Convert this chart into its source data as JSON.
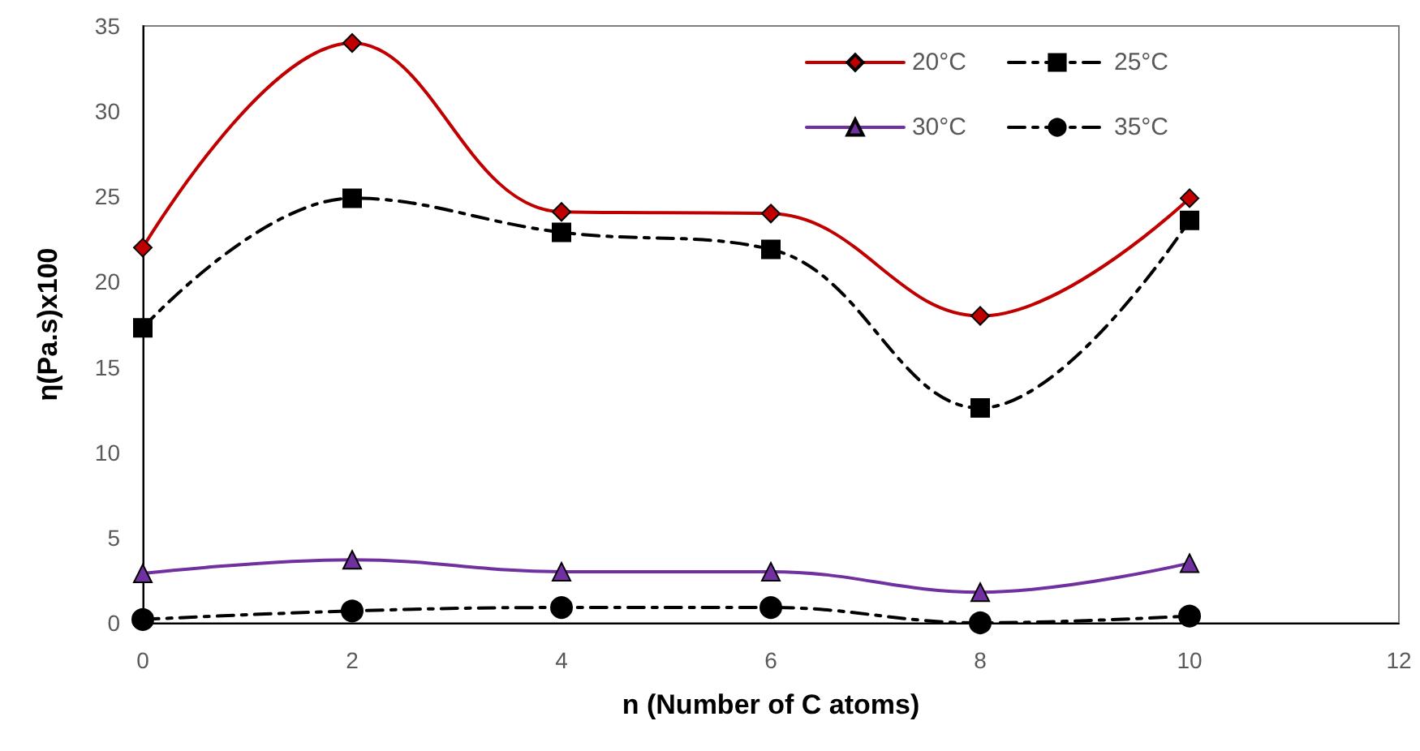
{
  "chart_data": {
    "type": "line",
    "xlabel": "n (Number of C atoms)",
    "ylabel": "η(Pa.s)x100",
    "x": [
      0,
      2,
      4,
      6,
      8,
      10
    ],
    "series": [
      {
        "name": "20°C",
        "color": "#c00000",
        "marker": "diamond",
        "line_style": "solid",
        "values": [
          22.0,
          34.0,
          24.1,
          24.0,
          18.0,
          24.9
        ]
      },
      {
        "name": "25°C",
        "color": "#000000",
        "marker": "square",
        "line_style": "dashed",
        "values": [
          17.3,
          24.9,
          22.9,
          21.9,
          12.6,
          23.6
        ]
      },
      {
        "name": "30°C",
        "color": "#7030a0",
        "marker": "triangle",
        "line_style": "solid",
        "values": [
          2.9,
          3.7,
          3.0,
          3.0,
          1.8,
          3.5
        ]
      },
      {
        "name": "35°C",
        "color": "#000000",
        "marker": "circle",
        "line_style": "dashed",
        "values": [
          0.2,
          0.7,
          0.9,
          0.9,
          0.0,
          0.4
        ]
      }
    ],
    "xlim": [
      0,
      12
    ],
    "xticks": [
      0,
      2,
      4,
      6,
      8,
      10,
      12
    ],
    "ylim": [
      0,
      35
    ],
    "yticks": [
      0,
      5,
      10,
      15,
      20,
      25,
      30,
      35
    ],
    "grid": false,
    "legend": "top right"
  }
}
